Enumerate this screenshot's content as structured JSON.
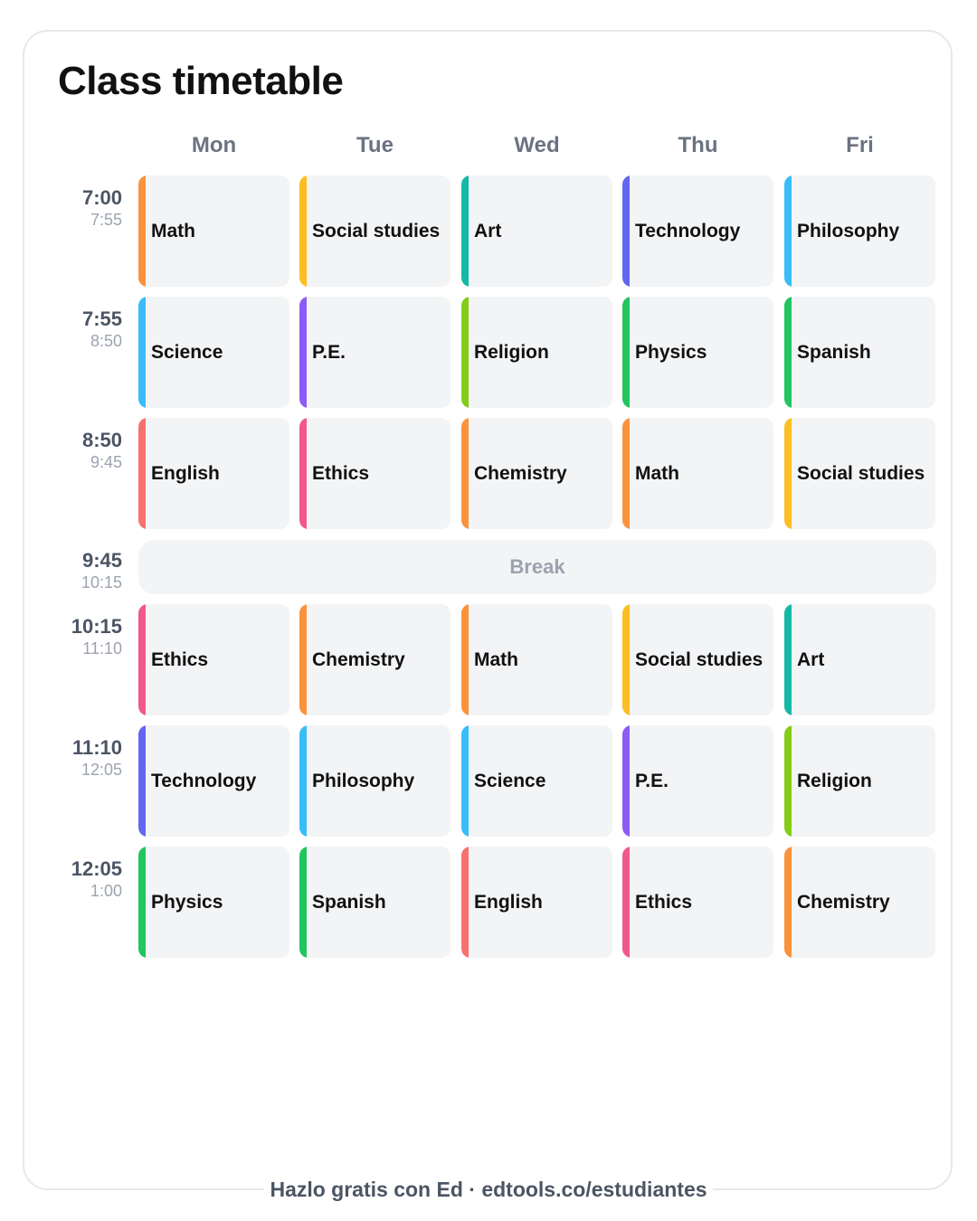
{
  "title": "Class timetable",
  "days": [
    "Mon",
    "Tue",
    "Wed",
    "Thu",
    "Fri"
  ],
  "colors": {
    "Math": "#fb923c",
    "Social studies": "#fbbf24",
    "Art": "#14b8a6",
    "Technology": "#6366f1",
    "Philosophy": "#38bdf8",
    "Science": "#38bdf8",
    "P.E.": "#8b5cf6",
    "Religion": "#84cc16",
    "Physics": "#22c55e",
    "Spanish": "#22c55e",
    "English": "#f87171",
    "Ethics": "#f0598a",
    "Chemistry": "#fb923c"
  },
  "rows": [
    {
      "start": "7:00",
      "end": "7:55",
      "subjects": [
        "Math",
        "Social studies",
        "Art",
        "Technology",
        "Philosophy"
      ]
    },
    {
      "start": "7:55",
      "end": "8:50",
      "subjects": [
        "Science",
        "P.E.",
        "Religion",
        "Physics",
        "Spanish"
      ]
    },
    {
      "start": "8:50",
      "end": "9:45",
      "subjects": [
        "English",
        "Ethics",
        "Chemistry",
        "Math",
        "Social studies"
      ]
    },
    {
      "start": "9:45",
      "end": "10:15",
      "break": "Break"
    },
    {
      "start": "10:15",
      "end": "11:10",
      "subjects": [
        "Ethics",
        "Chemistry",
        "Math",
        "Social studies",
        "Art"
      ]
    },
    {
      "start": "11:10",
      "end": "12:05",
      "subjects": [
        "Technology",
        "Philosophy",
        "Science",
        "P.E.",
        "Religion"
      ]
    },
    {
      "start": "12:05",
      "end": "1:00",
      "subjects": [
        "Physics",
        "Spanish",
        "English",
        "Ethics",
        "Chemistry"
      ]
    }
  ],
  "footer": "Hazlo gratis con Ed · edtools.co/estudiantes"
}
